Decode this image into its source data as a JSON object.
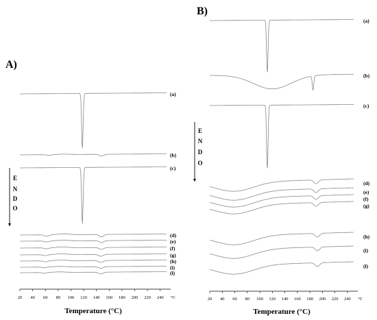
{
  "panels": [
    {
      "letter": "A)",
      "curve_letters": [
        "(a)",
        "(b)",
        "(c)",
        "(d)",
        "(e)",
        "(f)",
        "(g)",
        "(h)",
        "(i)",
        "(l)"
      ],
      "endo_letters": [
        "E",
        "N",
        "D",
        "O"
      ],
      "x_ticks": [
        "20",
        "40",
        "60",
        "80",
        "100",
        "120",
        "140",
        "160",
        "180",
        "200",
        "220",
        "240"
      ],
      "x_unit": "°C",
      "x_title": "Temperature (°C)"
    },
    {
      "letter": "B)",
      "curve_letters": [
        "(a)",
        "(b)",
        "(c)",
        "(d)",
        "(e)",
        "(f)",
        "(g)",
        "(h)",
        "(i)",
        "(l)"
      ],
      "endo_letters": [
        "E",
        "N",
        "D",
        "O"
      ],
      "x_ticks": [
        "20",
        "40",
        "60",
        "80",
        "100",
        "120",
        "140",
        "160",
        "180",
        "200",
        "220",
        "240"
      ],
      "x_unit": "°C",
      "x_title": "Temperature (°C)"
    }
  ],
  "chart_data": [
    {
      "type": "line",
      "title": "A)",
      "xlabel": "Temperature (°C)",
      "ylabel": "ENDO",
      "xlim": [
        20,
        250
      ],
      "grid": false,
      "series": [
        {
          "name": "(a)",
          "features": [
            {
              "kind": "endotherm",
              "x": 118,
              "depth": 1.0
            }
          ]
        },
        {
          "name": "(b)",
          "features": [
            {
              "kind": "endotherm",
              "x": 66,
              "depth": 0.15
            },
            {
              "kind": "exotherm",
              "x": 90,
              "depth": 0.12
            },
            {
              "kind": "endotherm",
              "x": 148,
              "depth": 0.35
            }
          ]
        },
        {
          "name": "(c)",
          "features": [
            {
              "kind": "endotherm",
              "x": 118,
              "depth": 1.0
            }
          ]
        },
        {
          "name": "(d)",
          "features": [
            {
              "kind": "endotherm",
              "x": 62,
              "depth": 0.3
            },
            {
              "kind": "exotherm",
              "x": 88,
              "depth": 0.25
            },
            {
              "kind": "endotherm",
              "x": 148,
              "depth": 0.5
            }
          ]
        },
        {
          "name": "(e)",
          "features": [
            {
              "kind": "endotherm",
              "x": 62,
              "depth": 0.2
            },
            {
              "kind": "exotherm",
              "x": 87,
              "depth": 0.2
            },
            {
              "kind": "endotherm",
              "x": 148,
              "depth": 0.4
            }
          ]
        },
        {
          "name": "(f)",
          "features": [
            {
              "kind": "endotherm",
              "x": 62,
              "depth": 0.2
            },
            {
              "kind": "exotherm",
              "x": 86,
              "depth": 0.2
            },
            {
              "kind": "endotherm",
              "x": 148,
              "depth": 0.4
            }
          ]
        },
        {
          "name": "(g)",
          "features": [
            {
              "kind": "endotherm",
              "x": 60,
              "depth": 0.2
            },
            {
              "kind": "exotherm",
              "x": 85,
              "depth": 0.2
            },
            {
              "kind": "endotherm",
              "x": 147,
              "depth": 0.4
            }
          ]
        },
        {
          "name": "(h)",
          "features": [
            {
              "kind": "endotherm",
              "x": 60,
              "depth": 0.2
            },
            {
              "kind": "exotherm",
              "x": 84,
              "depth": 0.2
            },
            {
              "kind": "endotherm",
              "x": 147,
              "depth": 0.4
            }
          ]
        },
        {
          "name": "(i)",
          "features": [
            {
              "kind": "endotherm",
              "x": 58,
              "depth": 0.15
            },
            {
              "kind": "exotherm",
              "x": 83,
              "depth": 0.15
            },
            {
              "kind": "endotherm",
              "x": 147,
              "depth": 0.35
            }
          ]
        },
        {
          "name": "(l)",
          "features": [
            {
              "kind": "endotherm",
              "x": 58,
              "depth": 0.15
            },
            {
              "kind": "exotherm",
              "x": 82,
              "depth": 0.15
            },
            {
              "kind": "endotherm",
              "x": 147,
              "depth": 0.35
            }
          ]
        }
      ]
    },
    {
      "type": "line",
      "title": "B)",
      "xlabel": "Temperature (°C)",
      "ylabel": "ENDO",
      "xlim": [
        20,
        250
      ],
      "grid": false,
      "series": [
        {
          "name": "(a)",
          "features": [
            {
              "kind": "endotherm",
              "x": 112,
              "depth": 1.0
            }
          ]
        },
        {
          "name": "(b)",
          "features": [
            {
              "kind": "broad-endotherm",
              "x": 120,
              "depth": 0.6
            },
            {
              "kind": "endotherm",
              "x": 185,
              "depth": 0.6
            }
          ]
        },
        {
          "name": "(c)",
          "features": [
            {
              "kind": "endotherm",
              "x": 112,
              "depth": 1.0
            }
          ]
        },
        {
          "name": "(d)",
          "features": [
            {
              "kind": "broad-endotherm",
              "x": 60,
              "depth": 0.6
            },
            {
              "kind": "endotherm",
              "x": 190,
              "depth": 0.5
            }
          ]
        },
        {
          "name": "(e)",
          "features": [
            {
              "kind": "broad-endotherm",
              "x": 60,
              "depth": 0.6
            },
            {
              "kind": "endotherm",
              "x": 190,
              "depth": 0.5
            }
          ]
        },
        {
          "name": "(f)",
          "features": [
            {
              "kind": "broad-endotherm",
              "x": 60,
              "depth": 0.6
            },
            {
              "kind": "endotherm",
              "x": 190,
              "depth": 0.5
            }
          ]
        },
        {
          "name": "(g)",
          "features": [
            {
              "kind": "broad-endotherm",
              "x": 60,
              "depth": 0.6
            },
            {
              "kind": "endotherm",
              "x": 190,
              "depth": 0.5
            }
          ]
        },
        {
          "name": "(h)",
          "features": [
            {
              "kind": "broad-endotherm",
              "x": 60,
              "depth": 0.6
            },
            {
              "kind": "endotherm",
              "x": 192,
              "depth": 0.5
            }
          ]
        },
        {
          "name": "(i)",
          "features": [
            {
              "kind": "broad-endotherm",
              "x": 60,
              "depth": 0.6
            },
            {
              "kind": "endotherm",
              "x": 192,
              "depth": 0.5
            }
          ]
        },
        {
          "name": "(l)",
          "features": [
            {
              "kind": "broad-endotherm",
              "x": 60,
              "depth": 0.6
            },
            {
              "kind": "endotherm",
              "x": 192,
              "depth": 0.5
            }
          ]
        }
      ]
    }
  ]
}
